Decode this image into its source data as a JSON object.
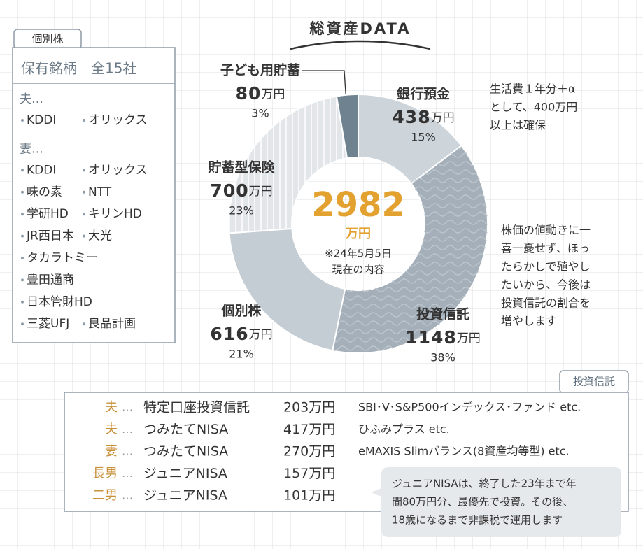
{
  "chart_data": {
    "type": "pie",
    "title": "総資産DATA",
    "categories": [
      "銀行預金",
      "投資信託",
      "個別株",
      "貯蓄型保険",
      "子ども用貯蓄"
    ],
    "values": [
      438,
      1148,
      616,
      700,
      80
    ],
    "unit": "万円",
    "percent_labels": [
      "15%",
      "38%",
      "21%",
      "23%",
      "3%"
    ],
    "colors": [
      "#cdd4da",
      "#a4afb9",
      "#c5cdd4",
      "#e2e6e9",
      "#6e8290"
    ],
    "patterns": [
      "none",
      "wave",
      "none",
      "stripe",
      "none"
    ],
    "center": {
      "total": 2982,
      "unit": "万円",
      "note": [
        "※24年5月5日",
        "現在の内容"
      ]
    },
    "annotations": [
      [
        "生活費１年分＋α",
        "として、400万円",
        "以上は確保"
      ],
      [
        "株価の値動きに一",
        "喜一憂せず、ほっ",
        "たらかしで殖やし",
        "たいから、今後は",
        "投資信託の割合を",
        "増やします"
      ]
    ]
  },
  "stocks": {
    "title": "個別株",
    "header": "保有銘柄　全15社",
    "groups": [
      {
        "label": "夫…",
        "rows": [
          [
            "KDDI",
            "オリックス"
          ]
        ]
      },
      {
        "label": "妻…",
        "rows": [
          [
            "KDDI",
            "オリックス"
          ],
          [
            "味の素",
            "NTT"
          ],
          [
            "学研HD",
            "キリンHD"
          ],
          [
            "JR西日本",
            "大光"
          ],
          [
            "タカラトミー"
          ],
          [
            "豊田通商"
          ],
          [
            "日本管財HD"
          ],
          [
            "三菱UFJ",
            "良品計画"
          ]
        ]
      }
    ]
  },
  "funds": {
    "title": "投資信託",
    "rows": [
      {
        "owner": "夫",
        "product": "特定口座投資信託",
        "amount": "203万円",
        "fund": "SBI･V･S&P500インデックス･ファンド etc."
      },
      {
        "owner": "夫",
        "product": "つみたてNISA",
        "amount": "417万円",
        "fund": "ひふみプラス etc."
      },
      {
        "owner": "妻",
        "product": "つみたてNISA",
        "amount": "270万円",
        "fund": "eMAXIS Slimバランス(8資産均等型) etc."
      },
      {
        "owner": "長男",
        "product": "ジュニアNISA",
        "amount": "157万円"
      },
      {
        "owner": "二男",
        "product": "ジュニアNISA",
        "amount": "101万円"
      }
    ],
    "note": [
      "ジュニアNISAは、終了した23年まで年",
      "間80万円分、最優先で投資。その後、",
      "18歳になるまで非課税で運用します"
    ]
  }
}
